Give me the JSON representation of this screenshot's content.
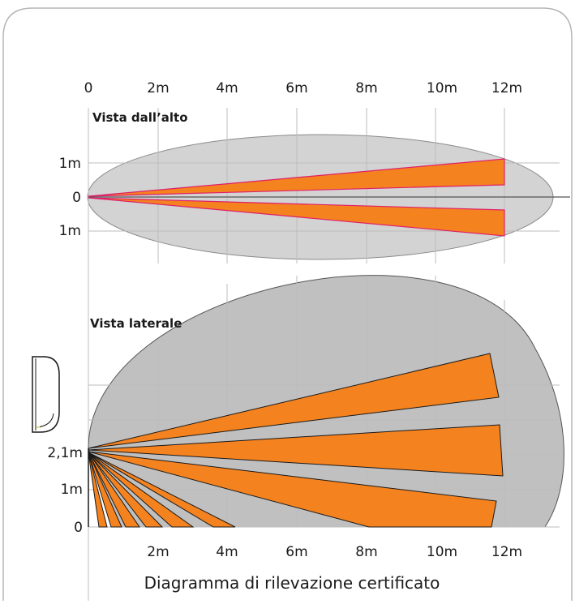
{
  "card": {
    "border_color": "#b5b5b5",
    "background": "#ffffff"
  },
  "colors": {
    "zone_fill": "#d3d3d3",
    "zone_stroke": "#8a8a8a",
    "side_zone_fill": "#c0c0c0",
    "beam_fill": "#f4821f",
    "beam_stroke_top": "#e0206a",
    "beam_stroke_side": "#1a1a1a",
    "grid": "#bdbdbd",
    "axis": "#555555"
  },
  "top_view": {
    "title": "Vista dall’alto",
    "x_ticks": [
      "0",
      "2m",
      "4m",
      "6m",
      "8m",
      "10m",
      "12m"
    ],
    "y_ticks": [
      "1m",
      "0",
      "1m"
    ],
    "beams": [
      {
        "name": "upper-beam",
        "end_m": 12,
        "half_width_from": 0.15,
        "half_width_to": 1.05
      },
      {
        "name": "lower-beam",
        "end_m": 12,
        "half_width_from": 0.15,
        "half_width_to": 1.05
      }
    ]
  },
  "side_view": {
    "title": "Vista laterale",
    "x_ticks": [
      "2m",
      "4m",
      "6m",
      "8m",
      "10m",
      "12m"
    ],
    "y_ticks": [
      "2,1m",
      "1m",
      "0"
    ],
    "mount_height_m": 2.1
  },
  "caption": "Diagramma di rilevazione certificato",
  "icons": {
    "device": "pir-sensor-icon"
  }
}
